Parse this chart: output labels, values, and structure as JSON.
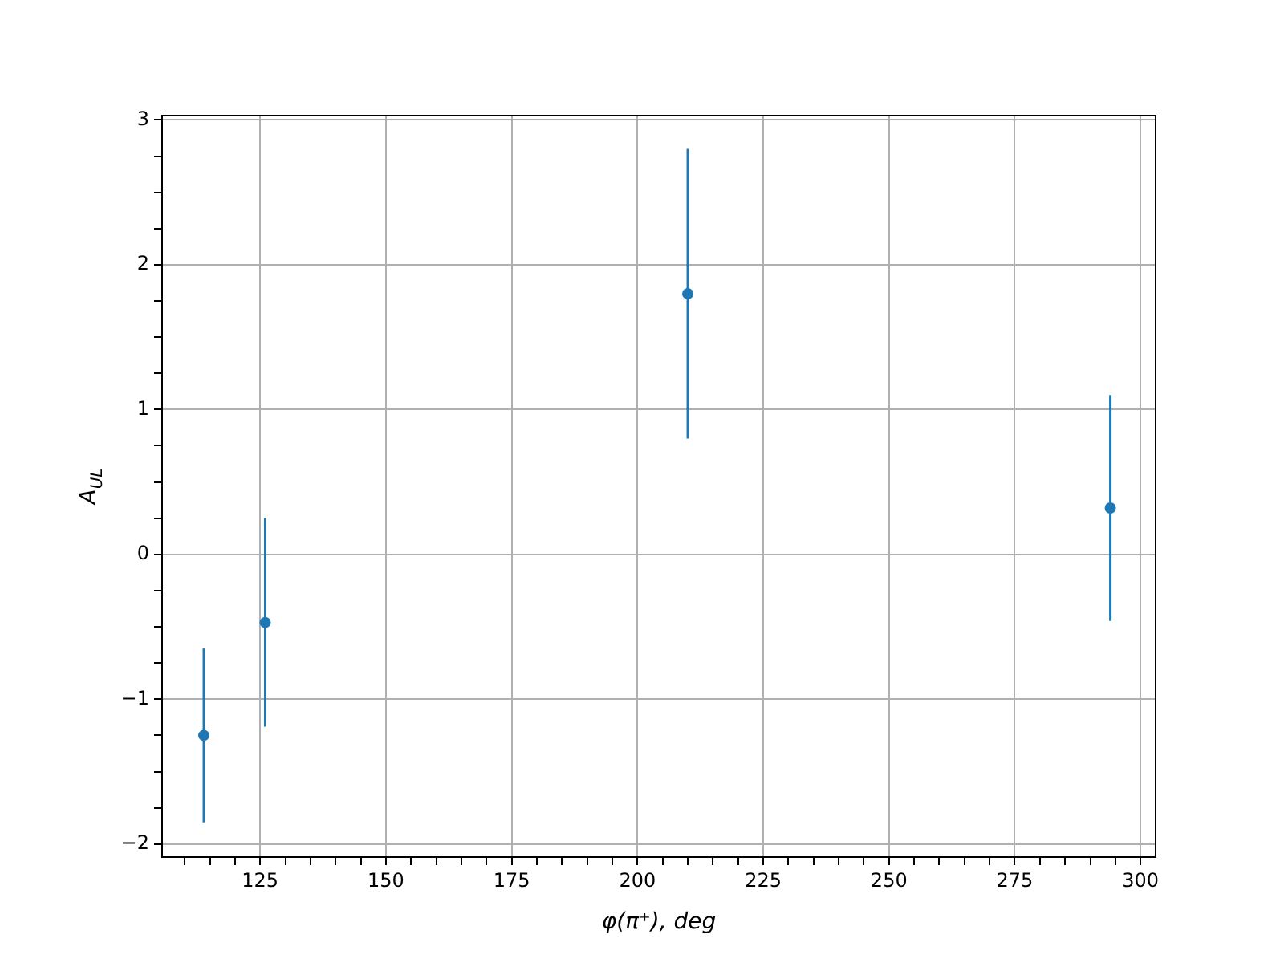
{
  "chart_data": {
    "type": "scatter",
    "xlabel": "φ(π⁺), deg",
    "ylabel": "A$_{UL}$",
    "x": [
      113.8,
      126,
      210,
      294
    ],
    "series": [
      {
        "color": "#1f77b4",
        "values": [
          -1.25,
          -0.47,
          1.8,
          0.32
        ],
        "errors": [
          0.6,
          0.72,
          1.0,
          0.78
        ]
      }
    ],
    "xlim": [
      105.5,
      303
    ],
    "ylim": [
      -2.09,
      3.03
    ],
    "xticks": [
      {
        "value": 110,
        "label": null
      },
      {
        "value": 115,
        "label": null
      },
      {
        "value": 120,
        "label": null
      },
      125,
      {
        "value": 130,
        "label": null
      },
      {
        "value": 135,
        "label": null
      },
      {
        "value": 140,
        "label": null
      },
      {
        "value": 145,
        "label": null
      },
      150,
      {
        "value": 155,
        "label": null
      },
      {
        "value": 160,
        "label": null
      },
      {
        "value": 165,
        "label": null
      },
      {
        "value": 170,
        "label": null
      },
      175,
      {
        "value": 180,
        "label": null
      },
      {
        "value": 185,
        "label": null
      },
      {
        "value": 190,
        "label": null
      },
      {
        "value": 195,
        "label": null
      },
      200,
      {
        "value": 205,
        "label": null
      },
      {
        "value": 210,
        "label": null
      },
      {
        "value": 215,
        "label": null
      },
      {
        "value": 220,
        "label": null
      },
      225,
      {
        "value": 230,
        "label": null
      },
      {
        "value": 235,
        "label": null
      },
      {
        "value": 240,
        "label": null
      },
      {
        "value": 245,
        "label": null
      },
      250,
      {
        "value": 255,
        "label": null
      },
      {
        "value": 260,
        "label": null
      },
      {
        "value": 265,
        "label": null
      },
      {
        "value": 270,
        "label": null
      },
      275,
      {
        "value": 280,
        "label": null
      },
      {
        "value": 285,
        "label": null
      },
      {
        "value": 290,
        "label": null
      },
      {
        "value": 295,
        "label": null
      },
      300
    ],
    "yticks": [
      {
        "value": -2,
        "label": "−2"
      },
      {
        "value": -1.75,
        "label": null
      },
      {
        "value": -1.5,
        "label": null
      },
      {
        "value": -1.25,
        "label": null
      },
      {
        "value": -1,
        "label": "−1"
      },
      {
        "value": -0.75,
        "label": null
      },
      {
        "value": -0.5,
        "label": null
      },
      {
        "value": -0.25,
        "label": null
      },
      0,
      {
        "value": 0.25,
        "label": null
      },
      {
        "value": 0.5,
        "label": null
      },
      {
        "value": 0.75,
        "label": null
      },
      1,
      {
        "value": 1.25,
        "label": null
      },
      {
        "value": 1.5,
        "label": null
      },
      {
        "value": 1.75,
        "label": null
      },
      2,
      {
        "value": 2.25,
        "label": null
      },
      {
        "value": 2.5,
        "label": null
      },
      {
        "value": 2.75,
        "label": null
      },
      3
    ],
    "grid": true,
    "legend": false,
    "marker": "circle"
  }
}
